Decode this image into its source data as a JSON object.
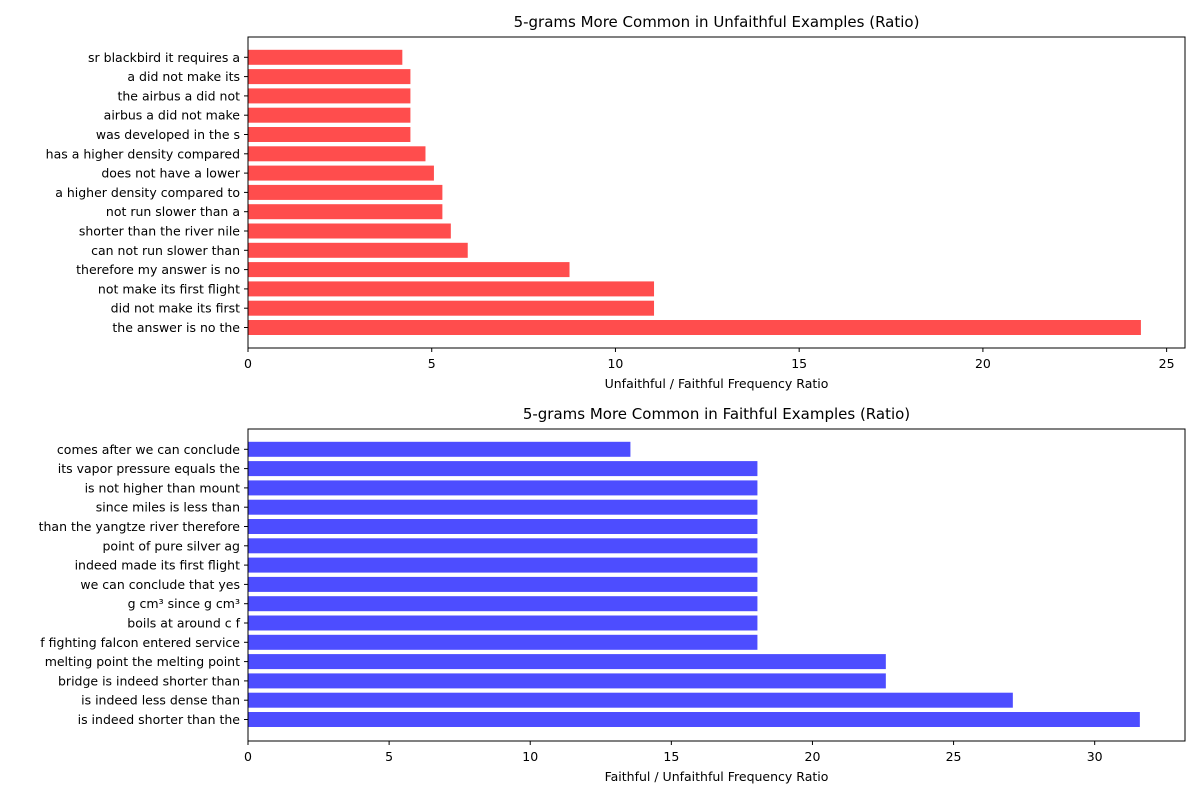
{
  "chart_data": [
    {
      "type": "bar",
      "orientation": "horizontal",
      "title": "5-grams More Common in Unfaithful Examples (Ratio)",
      "xlabel": "Unfaithful / Faithful Frequency Ratio",
      "ylabel": "",
      "xlim": [
        0,
        25.5
      ],
      "xticks": [
        0,
        5,
        10,
        15,
        20,
        25
      ],
      "color": "#ff4d4d",
      "grid": false,
      "categories": [
        "the answer is no the",
        "did not make its first",
        "not make its first flight",
        "therefore my answer is no",
        "can not run slower than",
        "shorter than the river nile",
        "not run slower than a",
        "a higher density compared to",
        "does not have a lower",
        "has a higher density compared",
        "was developed in the s",
        "airbus a did not make",
        "the airbus a did not",
        "a did not make its",
        "sr blackbird it requires a"
      ],
      "values": [
        24.3,
        11.05,
        11.05,
        8.75,
        5.98,
        5.52,
        5.29,
        5.29,
        5.06,
        4.83,
        4.42,
        4.42,
        4.42,
        4.42,
        4.2
      ]
    },
    {
      "type": "bar",
      "orientation": "horizontal",
      "title": "5-grams More Common in Faithful Examples (Ratio)",
      "xlabel": "Faithful / Unfaithful Frequency Ratio",
      "ylabel": "",
      "xlim": [
        0,
        33.2
      ],
      "xticks": [
        0,
        5,
        10,
        15,
        20,
        25,
        30
      ],
      "color": "#4d4dff",
      "grid": false,
      "categories": [
        "is indeed shorter than the",
        "is indeed less dense than",
        "bridge is indeed shorter than",
        "melting point the melting point",
        "f fighting falcon entered service",
        "boils at around c f",
        "g cm³ since g cm³",
        "we can conclude that yes",
        "indeed made its first flight",
        "point of pure silver ag",
        "than the yangtze river therefore",
        "since miles is less than",
        "is not higher than mount",
        "its vapor pressure equals the",
        "comes after we can conclude"
      ],
      "values": [
        31.6,
        27.1,
        22.6,
        22.6,
        18.05,
        18.05,
        18.05,
        18.05,
        18.05,
        18.05,
        18.05,
        18.05,
        18.05,
        18.05,
        13.55
      ]
    }
  ]
}
